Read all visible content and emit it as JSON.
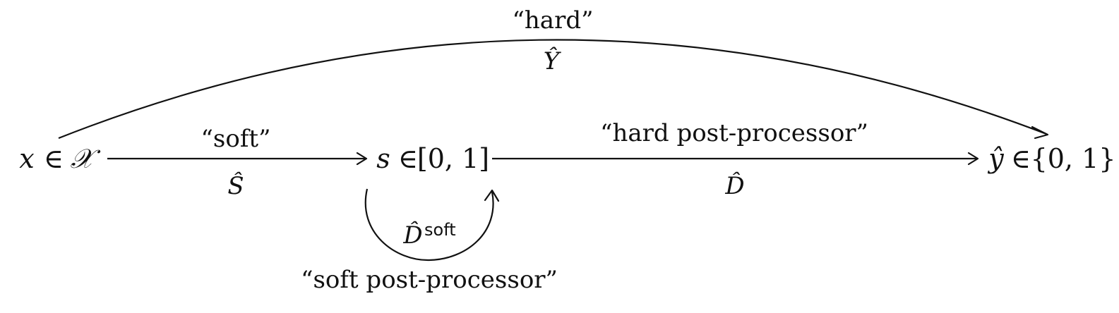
{
  "nodes": {
    "input": {
      "var": "x",
      "rel": "∈",
      "set": "𝒳"
    },
    "score": {
      "var": "s",
      "rel": "∈",
      "set": "[0, 1]"
    },
    "output": {
      "var": "ŷ",
      "rel": "∈",
      "set": "{0, 1}"
    }
  },
  "edges": {
    "hard": {
      "quote": "“hard”",
      "symbol": "Ŷ"
    },
    "soft": {
      "quote": "“soft”",
      "symbol": "Ŝ"
    },
    "hard_post": {
      "quote": "“hard post-processor”",
      "symbol": "D̂"
    },
    "soft_post": {
      "quote": "“soft post-processor”",
      "symbol": "D̂",
      "superscript": "soft"
    }
  },
  "colors": {
    "ink": "#111111",
    "background": "#ffffff"
  }
}
